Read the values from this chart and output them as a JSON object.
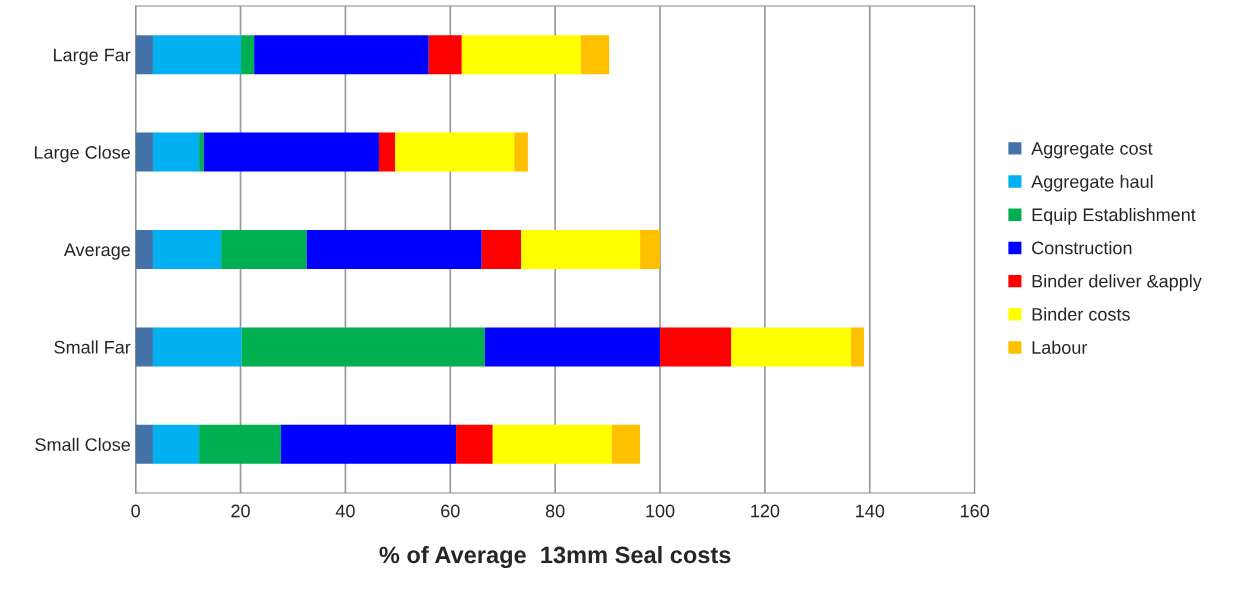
{
  "chart_data": {
    "type": "bar",
    "orientation": "horizontal",
    "stacked": true,
    "xlabel": "% of Average  13mm Seal costs",
    "categories": [
      "Large Far",
      "Large Close",
      "Average",
      "Small Far",
      "Small Close"
    ],
    "series": [
      {
        "name": "Aggregate cost",
        "color": "#4472a8",
        "values": [
          3.3,
          3.3,
          3.3,
          3.3,
          3.3
        ]
      },
      {
        "name": "Aggregate haul",
        "color": "#00b0f0",
        "values": [
          16.8,
          8.8,
          13.0,
          16.9,
          8.8
        ]
      },
      {
        "name": "Equip Establishment",
        "color": "#00b050",
        "values": [
          2.5,
          0.9,
          16.3,
          46.4,
          15.6
        ]
      },
      {
        "name": "Construction",
        "color": "#0000ff",
        "values": [
          33.3,
          33.4,
          33.4,
          33.4,
          33.4
        ]
      },
      {
        "name": "Binder deliver &apply",
        "color": "#ff0000",
        "values": [
          6.3,
          3.1,
          7.5,
          13.6,
          7.0
        ]
      },
      {
        "name": "Binder costs",
        "color": "#ffff00",
        "values": [
          22.7,
          22.7,
          22.7,
          22.8,
          22.7
        ]
      },
      {
        "name": "Labour",
        "color": "#ffc000",
        "values": [
          5.4,
          2.6,
          3.8,
          2.5,
          5.4
        ]
      }
    ],
    "xlim": [
      0,
      160
    ],
    "xticks": [
      0,
      20,
      40,
      60,
      80,
      100,
      120,
      140,
      160
    ],
    "grid": "x",
    "legend": "right"
  }
}
